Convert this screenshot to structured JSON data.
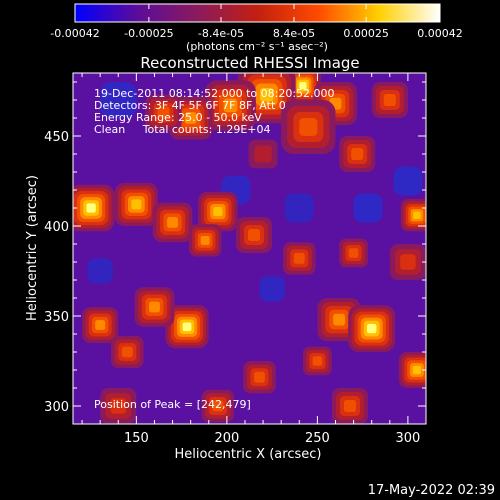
{
  "chart_data": {
    "type": "heatmap",
    "title": "Reconstructed RHESSI Image",
    "xlabel": "Heliocentric X (arcsec)",
    "ylabel": "Heliocentric Y (arcsec)",
    "xlim": [
      115,
      310
    ],
    "ylim": [
      290,
      485
    ],
    "x_ticks": [
      150,
      200,
      250,
      300
    ],
    "y_ticks": [
      300,
      350,
      400,
      450
    ],
    "colorbar": {
      "range": [
        -0.00042,
        0.00042
      ],
      "tick_values": [
        -0.00042,
        -0.00025,
        -8.4e-05,
        8.4e-05,
        0.00025,
        0.00042
      ],
      "tick_labels": [
        "-0.00042",
        "-0.00025",
        "-8.4e-05",
        "8.4e-05",
        "0.00025",
        "0.00042"
      ],
      "units_label": "(photons cm⁻² s⁻¹ asec⁻²)",
      "colormap": [
        "#0000ff",
        "#5a0c9c",
        "#8a1a5e",
        "#c22010",
        "#ff4a00",
        "#ffd000",
        "#ffffff"
      ]
    },
    "annotations": [
      "19-Dec-2011 08:14:52.000 to 08:20:52.000",
      "Detectors: 3F 4F 5F 6F 7F 8F, Att 0",
      "Energy Range: 25.0 - 50.0 keV",
      "Clean     Total counts: 1.29E+04"
    ],
    "peak_label": "Position of Peak = [242,479]",
    "peak": {
      "x": 242,
      "y": 479
    },
    "blobs": [
      {
        "x": 242,
        "y": 478,
        "r": 10,
        "v": 1.0
      },
      {
        "x": 222,
        "y": 473,
        "r": 16,
        "v": 0.85
      },
      {
        "x": 260,
        "y": 468,
        "r": 12,
        "v": 0.7
      },
      {
        "x": 202,
        "y": 467,
        "r": 14,
        "v": 0.65
      },
      {
        "x": 180,
        "y": 460,
        "r": 12,
        "v": 0.7
      },
      {
        "x": 165,
        "y": 463,
        "r": 10,
        "v": 0.55
      },
      {
        "x": 245,
        "y": 455,
        "r": 15,
        "v": 0.6
      },
      {
        "x": 272,
        "y": 440,
        "r": 10,
        "v": 0.6
      },
      {
        "x": 290,
        "y": 470,
        "r": 10,
        "v": 0.5
      },
      {
        "x": 125,
        "y": 410,
        "r": 13,
        "v": 0.95
      },
      {
        "x": 150,
        "y": 412,
        "r": 12,
        "v": 0.85
      },
      {
        "x": 170,
        "y": 402,
        "r": 11,
        "v": 0.7
      },
      {
        "x": 195,
        "y": 408,
        "r": 11,
        "v": 0.85
      },
      {
        "x": 188,
        "y": 392,
        "r": 9,
        "v": 0.7
      },
      {
        "x": 215,
        "y": 395,
        "r": 10,
        "v": 0.6
      },
      {
        "x": 305,
        "y": 406,
        "r": 9,
        "v": 0.8
      },
      {
        "x": 270,
        "y": 385,
        "r": 8,
        "v": 0.55
      },
      {
        "x": 240,
        "y": 382,
        "r": 9,
        "v": 0.5
      },
      {
        "x": 178,
        "y": 344,
        "r": 12,
        "v": 0.95
      },
      {
        "x": 160,
        "y": 355,
        "r": 11,
        "v": 0.7
      },
      {
        "x": 130,
        "y": 345,
        "r": 10,
        "v": 0.65
      },
      {
        "x": 145,
        "y": 330,
        "r": 9,
        "v": 0.5
      },
      {
        "x": 262,
        "y": 348,
        "r": 12,
        "v": 0.75
      },
      {
        "x": 280,
        "y": 343,
        "r": 13,
        "v": 0.95
      },
      {
        "x": 305,
        "y": 320,
        "r": 10,
        "v": 0.9
      },
      {
        "x": 250,
        "y": 325,
        "r": 8,
        "v": 0.55
      },
      {
        "x": 218,
        "y": 316,
        "r": 9,
        "v": 0.55
      },
      {
        "x": 195,
        "y": 300,
        "r": 9,
        "v": 0.5
      },
      {
        "x": 268,
        "y": 300,
        "r": 10,
        "v": 0.55
      },
      {
        "x": 140,
        "y": 300,
        "r": 10,
        "v": 0.45
      },
      {
        "x": 220,
        "y": 440,
        "r": 8,
        "v": 0.3
      },
      {
        "x": 300,
        "y": 380,
        "r": 10,
        "v": 0.4
      }
    ],
    "dips": [
      {
        "x": 140,
        "y": 470,
        "r": 10,
        "v": 0.4
      },
      {
        "x": 278,
        "y": 410,
        "r": 8,
        "v": 0.45
      },
      {
        "x": 300,
        "y": 425,
        "r": 8,
        "v": 0.45
      },
      {
        "x": 225,
        "y": 365,
        "r": 7,
        "v": 0.4
      },
      {
        "x": 205,
        "y": 420,
        "r": 8,
        "v": 0.4
      },
      {
        "x": 240,
        "y": 410,
        "r": 8,
        "v": 0.35
      },
      {
        "x": 130,
        "y": 375,
        "r": 7,
        "v": 0.35
      }
    ]
  },
  "footer": {
    "timestamp": "17-May-2022 02:39"
  }
}
